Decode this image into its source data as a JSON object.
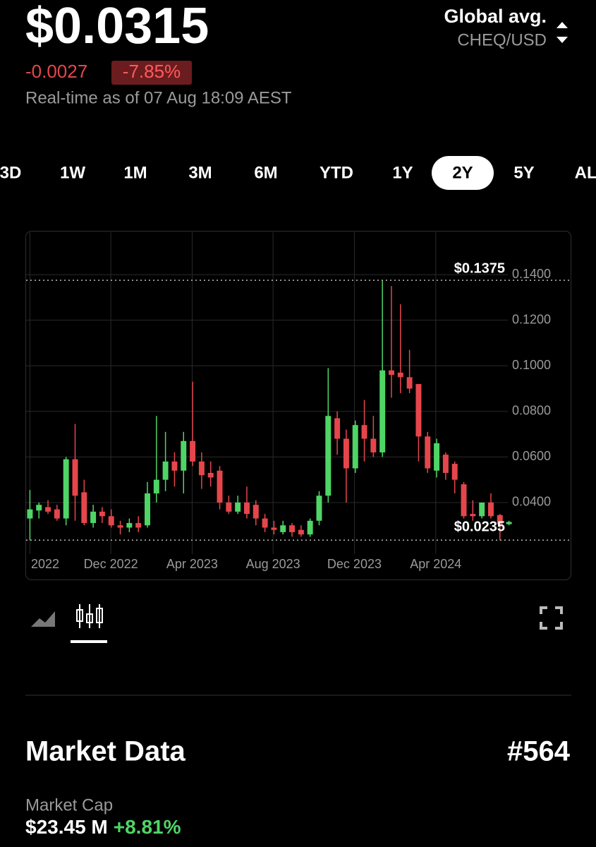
{
  "header": {
    "price": "$0.0315",
    "change": "-0.0027",
    "change_pct": "-7.85%",
    "timestamp": "Real-time as of 07 Aug 18:09 AEST",
    "source": "Global avg.",
    "pair": "CHEQ/USD"
  },
  "tabs": {
    "items": [
      "3D",
      "1W",
      "1M",
      "3M",
      "6M",
      "YTD",
      "1Y",
      "2Y",
      "5Y",
      "ALL"
    ],
    "selected": 7
  },
  "chart_data": {
    "type": "candlestick",
    "up_color": "#4fd566",
    "down_color": "#e5464b",
    "grid": true,
    "x": [
      0,
      1,
      2,
      3,
      4,
      5,
      6,
      7,
      8,
      9,
      10,
      11,
      12,
      13,
      14,
      15,
      16,
      17,
      18,
      19,
      20,
      21,
      22,
      23,
      24,
      25,
      26,
      27,
      28,
      29,
      30,
      31,
      32,
      33,
      34,
      35,
      36,
      37,
      38,
      39,
      40,
      41,
      42,
      43,
      44,
      45,
      46,
      47,
      48,
      49,
      50,
      51,
      52,
      53
    ],
    "open": [
      0.033,
      0.0365,
      0.038,
      0.037,
      0.033,
      0.059,
      0.0445,
      0.031,
      0.036,
      0.034,
      0.03,
      0.029,
      0.031,
      0.03,
      0.044,
      0.05,
      0.058,
      0.054,
      0.067,
      0.058,
      0.053,
      0.054,
      0.04,
      0.036,
      0.04,
      0.039,
      0.033,
      0.029,
      0.027,
      0.03,
      0.028,
      0.026,
      0.032,
      0.043,
      0.077,
      0.068,
      0.055,
      0.074,
      0.068,
      0.062,
      0.098,
      0.097,
      0.095,
      0.092,
      0.069,
      0.054,
      0.061,
      0.057,
      0.048,
      0.035,
      0.034,
      0.04,
      0.0345,
      0.0305
    ],
    "high": [
      0.0455,
      0.04,
      0.041,
      0.039,
      0.06,
      0.0745,
      0.05,
      0.039,
      0.038,
      0.037,
      0.032,
      0.033,
      0.034,
      0.049,
      0.078,
      0.071,
      0.062,
      0.071,
      0.093,
      0.062,
      0.058,
      0.056,
      0.043,
      0.043,
      0.047,
      0.041,
      0.035,
      0.032,
      0.032,
      0.031,
      0.03,
      0.033,
      0.045,
      0.099,
      0.08,
      0.072,
      0.076,
      0.085,
      0.078,
      0.1375,
      0.135,
      0.127,
      0.107,
      0.092,
      0.071,
      0.068,
      0.062,
      0.058,
      0.049,
      0.041,
      0.04,
      0.044,
      0.035,
      0.032
    ],
    "low": [
      0.0235,
      0.033,
      0.035,
      0.032,
      0.03,
      0.032,
      0.03,
      0.029,
      0.031,
      0.029,
      0.026,
      0.027,
      0.027,
      0.029,
      0.04,
      0.045,
      0.047,
      0.044,
      0.056,
      0.046,
      0.047,
      0.037,
      0.035,
      0.035,
      0.033,
      0.03,
      0.027,
      0.026,
      0.026,
      0.025,
      0.025,
      0.025,
      0.03,
      0.04,
      0.061,
      0.04,
      0.053,
      0.058,
      0.06,
      0.06,
      0.086,
      0.088,
      0.088,
      0.058,
      0.053,
      0.051,
      0.05,
      0.044,
      0.033,
      0.032,
      0.033,
      0.033,
      0.0235,
      0.03
    ],
    "close": [
      0.037,
      0.039,
      0.036,
      0.033,
      0.059,
      0.043,
      0.031,
      0.036,
      0.034,
      0.03,
      0.029,
      0.031,
      0.029,
      0.044,
      0.05,
      0.058,
      0.054,
      0.067,
      0.058,
      0.052,
      0.051,
      0.04,
      0.036,
      0.04,
      0.035,
      0.033,
      0.029,
      0.028,
      0.03,
      0.027,
      0.026,
      0.032,
      0.043,
      0.078,
      0.068,
      0.055,
      0.074,
      0.068,
      0.062,
      0.098,
      0.096,
      0.095,
      0.09,
      0.069,
      0.055,
      0.066,
      0.053,
      0.05,
      0.034,
      0.034,
      0.04,
      0.034,
      0.0305,
      0.0315
    ],
    "xlim": [
      -0.5,
      53.5
    ],
    "ylim": [
      0.018,
      0.158
    ],
    "xticks": [
      {
        "value": 0,
        "label": "2022"
      },
      {
        "value": 8.95,
        "label": "Dec 2022"
      },
      {
        "value": 17.95,
        "label": "Apr 2023"
      },
      {
        "value": 26.9,
        "label": "Aug 2023"
      },
      {
        "value": 35.9,
        "label": "Dec 2023"
      },
      {
        "value": 44.9,
        "label": "Apr 2024"
      }
    ],
    "yticks": [
      {
        "value": 0.04,
        "label": "0.0400"
      },
      {
        "value": 0.06,
        "label": "0.0600"
      },
      {
        "value": 0.08,
        "label": "0.0800"
      },
      {
        "value": 0.1,
        "label": "0.1000"
      },
      {
        "value": 0.12,
        "label": "0.1200"
      },
      {
        "value": 0.14,
        "label": "0.1400"
      }
    ],
    "max_marker": {
      "value": 0.1375,
      "label": "$0.1375"
    },
    "min_marker": {
      "value": 0.0235,
      "label": "$0.0235"
    }
  },
  "market": {
    "title": "Market Data",
    "rank": "#564",
    "cap_label": "Market Cap",
    "cap_value": "$23.45 M",
    "cap_change": "+8.81%"
  }
}
